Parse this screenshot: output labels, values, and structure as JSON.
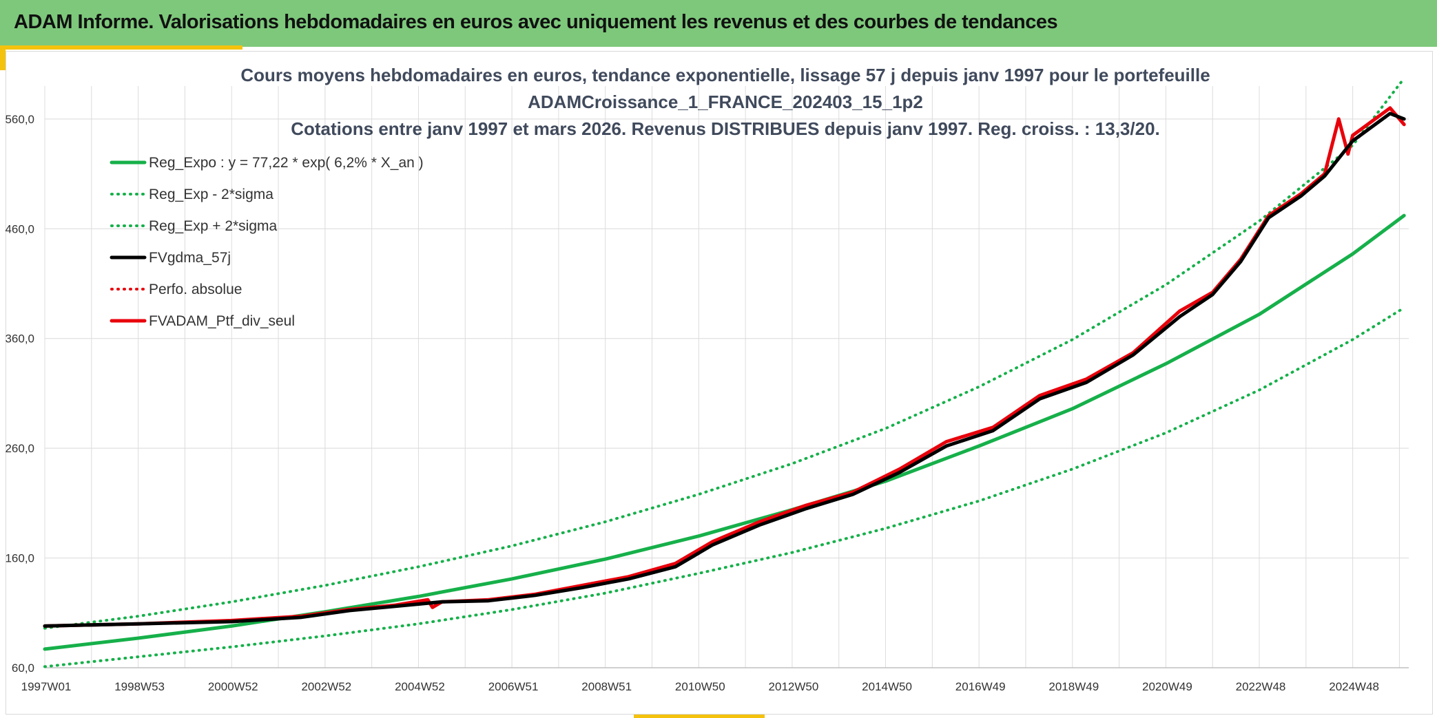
{
  "header": {
    "title": "ADAM Informe. Valorisations hebdomadaires en euros avec uniquement les revenus et des courbes de tendances"
  },
  "colors": {
    "banner": "#7dc87b",
    "accent": "#f4c20d",
    "trend": "#16b04a",
    "smooth": "#000000",
    "portfolio": "#e8000b"
  },
  "chart_data": {
    "type": "line",
    "title_lines": [
      "Cours moyens hebdomadaires en euros, tendance exponentielle, lissage 57 j depuis janv 1997 pour le portefeuille",
      "ADAMCroissance_1_FRANCE_202403_15_1p2",
      "Cotations entre janv 1997 et mars 2026. Revenus DISTRIBUES depuis janv 1997. Reg. croiss. : 13,3/20."
    ],
    "xlabel": "",
    "ylabel": "",
    "xlim": [
      1997.0,
      2026.2
    ],
    "ylim": [
      60,
      590
    ],
    "x_ticks": [
      {
        "label": "1997W01",
        "x": 1997.0
      },
      {
        "label": "1998W53",
        "x": 1999.0
      },
      {
        "label": "2000W52",
        "x": 2001.0
      },
      {
        "label": "2002W52",
        "x": 2003.0
      },
      {
        "label": "2004W52",
        "x": 2005.0
      },
      {
        "label": "2006W51",
        "x": 2007.0
      },
      {
        "label": "2008W51",
        "x": 2009.0
      },
      {
        "label": "2010W50",
        "x": 2011.0
      },
      {
        "label": "2012W50",
        "x": 2013.0
      },
      {
        "label": "2014W50",
        "x": 2015.0
      },
      {
        "label": "2016W49",
        "x": 2017.0
      },
      {
        "label": "2018W49",
        "x": 2019.0
      },
      {
        "label": "2020W49",
        "x": 2021.0
      },
      {
        "label": "2022W48",
        "x": 2023.0
      },
      {
        "label": "2024W48",
        "x": 2025.0
      }
    ],
    "y_ticks": [
      {
        "label": "60,0",
        "v": 60
      },
      {
        "label": "160,0",
        "v": 160
      },
      {
        "label": "260,0",
        "v": 260
      },
      {
        "label": "360,0",
        "v": 360
      },
      {
        "label": "460,0",
        "v": 460
      },
      {
        "label": "560,0",
        "v": 560
      }
    ],
    "grid": true,
    "legend_position": "top-left",
    "legend": [
      {
        "label": "Reg_Expo : y = 77,22 * exp( 6,2% *  X_an )",
        "color": "#16b04a",
        "style": "solid",
        "weight": 5
      },
      {
        "label": "Reg_Exp - 2*sigma",
        "color": "#16b04a",
        "style": "dotted",
        "weight": 4
      },
      {
        "label": "Reg_Exp + 2*sigma",
        "color": "#16b04a",
        "style": "dotted",
        "weight": 4
      },
      {
        "label": "FVgdma_57j",
        "color": "#000000",
        "style": "solid",
        "weight": 5
      },
      {
        "label": "Perfo. absolue",
        "color": "#e8000b",
        "style": "dotted",
        "weight": 4
      },
      {
        "label": "FVADAM_Ptf_div_seul",
        "color": "#e8000b",
        "style": "solid",
        "weight": 5
      }
    ],
    "series": [
      {
        "name": "Reg_Expo",
        "x": [
          1997.0,
          1999.0,
          2001.0,
          2003.0,
          2005.0,
          2007.0,
          2009.0,
          2011.0,
          2013.0,
          2015.0,
          2017.0,
          2019.0,
          2021.0,
          2023.0,
          2025.0,
          2026.1
        ],
        "values": [
          77,
          87,
          98,
          111,
          125,
          141,
          159,
          180,
          204,
          230,
          262,
          296,
          337,
          382,
          437,
          472
        ]
      },
      {
        "name": "Reg_Exp - 2*sigma",
        "x": [
          1997.0,
          1999.0,
          2001.0,
          2003.0,
          2005.0,
          2007.0,
          2009.0,
          2011.0,
          2013.0,
          2015.0,
          2017.0,
          2019.0,
          2021.0,
          2023.0,
          2025.0,
          2026.1
        ],
        "values": [
          61,
          70,
          79,
          89,
          100,
          113,
          128,
          146,
          165,
          187,
          212,
          241,
          274,
          313,
          359,
          388
        ]
      },
      {
        "name": "Reg_Exp + 2*sigma",
        "x": [
          1997.0,
          1999.0,
          2001.0,
          2003.0,
          2005.0,
          2007.0,
          2009.0,
          2011.0,
          2013.0,
          2015.0,
          2017.0,
          2019.0,
          2021.0,
          2023.0,
          2025.0,
          2026.1
        ],
        "values": [
          96,
          107,
          120,
          135,
          152,
          171,
          193,
          218,
          246,
          278,
          316,
          359,
          409,
          467,
          536,
          597
        ]
      },
      {
        "name": "FVgdma_57j",
        "x": [
          1997.0,
          1999.0,
          2001.0,
          2002.5,
          2003.5,
          2004.5,
          2005.5,
          2006.5,
          2007.5,
          2008.5,
          2009.5,
          2010.5,
          2011.3,
          2012.3,
          2013.3,
          2014.3,
          2015.3,
          2016.3,
          2017.3,
          2018.3,
          2019.3,
          2020.3,
          2021.3,
          2022.0,
          2022.6,
          2023.2,
          2023.9,
          2024.4,
          2025.0,
          2025.8,
          2026.1
        ],
        "values": [
          98,
          100,
          102,
          106,
          112,
          116,
          120,
          121,
          126,
          133,
          141,
          152,
          172,
          190,
          205,
          218,
          238,
          262,
          276,
          305,
          320,
          345,
          380,
          400,
          430,
          470,
          490,
          508,
          540,
          565,
          560
        ]
      },
      {
        "name": "Perfo. absolue",
        "x": [
          1997.0,
          1999.0,
          2001.0,
          2002.5,
          2003.5,
          2004.5,
          2005.5,
          2006.5,
          2007.5,
          2008.5,
          2009.5,
          2010.5,
          2011.3,
          2012.3,
          2013.3,
          2014.3,
          2015.3,
          2016.3,
          2017.3,
          2018.3,
          2019.3,
          2020.3,
          2021.3,
          2022.0,
          2022.6,
          2023.2,
          2023.9,
          2024.4,
          2025.0,
          2025.8,
          2026.1
        ],
        "values": [
          98,
          100,
          102,
          106,
          112,
          116,
          120,
          121,
          126,
          133,
          141,
          152,
          172,
          190,
          205,
          218,
          238,
          262,
          276,
          305,
          320,
          345,
          380,
          400,
          430,
          470,
          490,
          508,
          540,
          565,
          560
        ]
      },
      {
        "name": "FVADAM_Ptf_div_seul",
        "x": [
          1997.0,
          1999.0,
          2001.0,
          2002.5,
          2003.5,
          2004.5,
          2005.2,
          2005.3,
          2005.5,
          2006.5,
          2007.5,
          2008.5,
          2009.5,
          2010.5,
          2011.3,
          2012.3,
          2013.3,
          2014.3,
          2015.3,
          2016.3,
          2017.3,
          2018.3,
          2019.3,
          2020.3,
          2021.3,
          2022.0,
          2022.6,
          2023.2,
          2023.9,
          2024.4,
          2024.7,
          2024.9,
          2025.0,
          2025.8,
          2026.1
        ],
        "values": [
          98,
          100,
          103,
          107,
          113,
          117,
          122,
          115,
          120,
          122,
          127,
          135,
          143,
          155,
          175,
          193,
          208,
          220,
          241,
          266,
          279,
          308,
          323,
          347,
          385,
          402,
          432,
          472,
          492,
          510,
          560,
          528,
          545,
          570,
          555
        ]
      }
    ]
  }
}
